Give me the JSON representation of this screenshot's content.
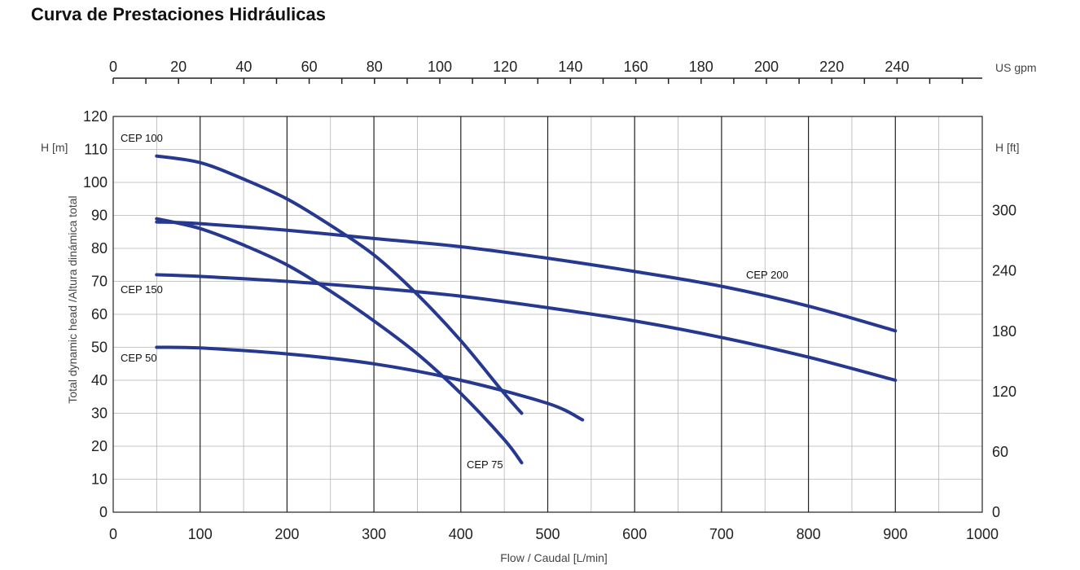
{
  "page_title": "Curva de Prestaciones Hidráulicas",
  "chart_data": {
    "type": "line",
    "title": "Curva de Prestaciones Hidráulicas",
    "xlabel": "Flow / Caudal [L/min]",
    "ylabel": "Total dynamic head /Altura dinámica total",
    "y_unit_left": "H [m]",
    "y_unit_right": "H [ft]",
    "x_unit_top": "US gpm",
    "xlim": [
      0,
      1000
    ],
    "ylim": [
      0,
      120
    ],
    "x_ticks": [
      0,
      100,
      200,
      300,
      400,
      500,
      600,
      700,
      800,
      900,
      1000
    ],
    "y_ticks": [
      0,
      10,
      20,
      30,
      40,
      50,
      60,
      70,
      80,
      90,
      100,
      110,
      120
    ],
    "top_ticks": [
      0,
      20,
      40,
      60,
      80,
      100,
      120,
      140,
      160,
      180,
      200,
      220,
      240
    ],
    "right_ticks": [
      0,
      60,
      120,
      180,
      240,
      300
    ],
    "grid": true,
    "line_color": "#26388f",
    "series": [
      {
        "name": "CEP 100",
        "x": [
          50,
          100,
          150,
          200,
          250,
          300,
          350,
          400,
          450,
          470
        ],
        "y": [
          108,
          106,
          101,
          95,
          87,
          78,
          66,
          52,
          36,
          30
        ]
      },
      {
        "name": "CEP 150",
        "x": [
          50,
          100,
          200,
          300,
          400,
          500,
          600,
          700,
          800,
          900
        ],
        "y": [
          72,
          71.5,
          70,
          68,
          65.5,
          62,
          58,
          53,
          47,
          40
        ]
      },
      {
        "name": "CEP 50",
        "x": [
          50,
          100,
          200,
          300,
          400,
          500,
          540
        ],
        "y": [
          50,
          49.8,
          48,
          45,
          40,
          33,
          28
        ]
      },
      {
        "name": "CEP 200",
        "x": [
          50,
          100,
          200,
          300,
          400,
          500,
          600,
          700,
          800,
          900
        ],
        "y": [
          88,
          87.5,
          85.5,
          83,
          80.5,
          77,
          73,
          68.5,
          62.5,
          55
        ]
      },
      {
        "name": "CEP 75",
        "x": [
          50,
          100,
          150,
          200,
          250,
          300,
          350,
          400,
          450,
          470
        ],
        "y": [
          89,
          86,
          81,
          75,
          67,
          58,
          48,
          36,
          22,
          15
        ]
      }
    ]
  }
}
